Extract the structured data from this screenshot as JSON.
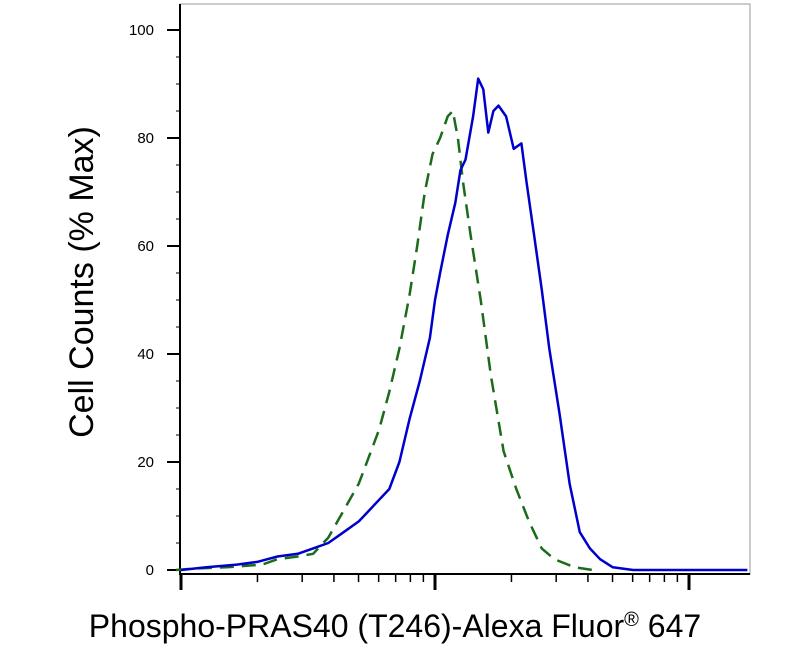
{
  "chart_data": {
    "type": "line",
    "xlabel": "Phospho-PRAS40 (T246)-Alexa Fluor",
    "xlabel_mark": "®",
    "xlabel_suffix": " 647",
    "ylabel": "Cell Counts (% Max)",
    "ylim": [
      0,
      105
    ],
    "x_scale": "log",
    "x_decades": 3,
    "yticks": [
      0,
      20,
      40,
      60,
      80,
      100
    ],
    "grid": false,
    "legend": "none",
    "series": [
      {
        "style": "dashed",
        "color": "#1a6b1a",
        "points": [
          [
            -0.02,
            0
          ],
          [
            0.06,
            0.3
          ],
          [
            0.18,
            0.5
          ],
          [
            0.32,
            1
          ],
          [
            0.38,
            2
          ],
          [
            0.46,
            2.5
          ],
          [
            0.52,
            3
          ],
          [
            0.58,
            6
          ],
          [
            0.64,
            11
          ],
          [
            0.7,
            16
          ],
          [
            0.74,
            21
          ],
          [
            0.78,
            26
          ],
          [
            0.82,
            33
          ],
          [
            0.86,
            41
          ],
          [
            0.9,
            51
          ],
          [
            0.93,
            60
          ],
          [
            0.96,
            70
          ],
          [
            0.99,
            77
          ],
          [
            1.02,
            80
          ],
          [
            1.05,
            84
          ],
          [
            1.07,
            85
          ],
          [
            1.09,
            80
          ],
          [
            1.11,
            72
          ],
          [
            1.14,
            62
          ],
          [
            1.18,
            50
          ],
          [
            1.22,
            36
          ],
          [
            1.27,
            22
          ],
          [
            1.32,
            15
          ],
          [
            1.37,
            9
          ],
          [
            1.42,
            4
          ],
          [
            1.47,
            2
          ],
          [
            1.55,
            0.5
          ],
          [
            1.62,
            0
          ]
        ]
      },
      {
        "style": "solid",
        "color": "#0000cc",
        "points": [
          [
            0.0,
            0
          ],
          [
            0.1,
            0.5
          ],
          [
            0.22,
            1
          ],
          [
            0.3,
            1.5
          ],
          [
            0.38,
            2.5
          ],
          [
            0.46,
            3
          ],
          [
            0.52,
            4
          ],
          [
            0.58,
            5
          ],
          [
            0.64,
            7
          ],
          [
            0.7,
            9
          ],
          [
            0.74,
            11
          ],
          [
            0.78,
            13
          ],
          [
            0.82,
            15
          ],
          [
            0.86,
            20
          ],
          [
            0.9,
            28
          ],
          [
            0.94,
            35
          ],
          [
            0.98,
            43
          ],
          [
            1.0,
            50
          ],
          [
            1.02,
            55
          ],
          [
            1.05,
            62
          ],
          [
            1.08,
            68
          ],
          [
            1.1,
            74
          ],
          [
            1.12,
            76
          ],
          [
            1.15,
            84
          ],
          [
            1.17,
            91
          ],
          [
            1.19,
            89
          ],
          [
            1.21,
            81
          ],
          [
            1.23,
            85
          ],
          [
            1.25,
            86
          ],
          [
            1.28,
            84
          ],
          [
            1.31,
            78
          ],
          [
            1.34,
            79
          ],
          [
            1.36,
            72
          ],
          [
            1.39,
            62
          ],
          [
            1.42,
            52
          ],
          [
            1.45,
            41
          ],
          [
            1.49,
            29
          ],
          [
            1.53,
            16
          ],
          [
            1.57,
            7
          ],
          [
            1.61,
            4
          ],
          [
            1.65,
            2
          ],
          [
            1.7,
            0.5
          ],
          [
            1.78,
            0
          ],
          [
            1.95,
            0
          ],
          [
            2.23,
            0
          ]
        ]
      }
    ]
  }
}
